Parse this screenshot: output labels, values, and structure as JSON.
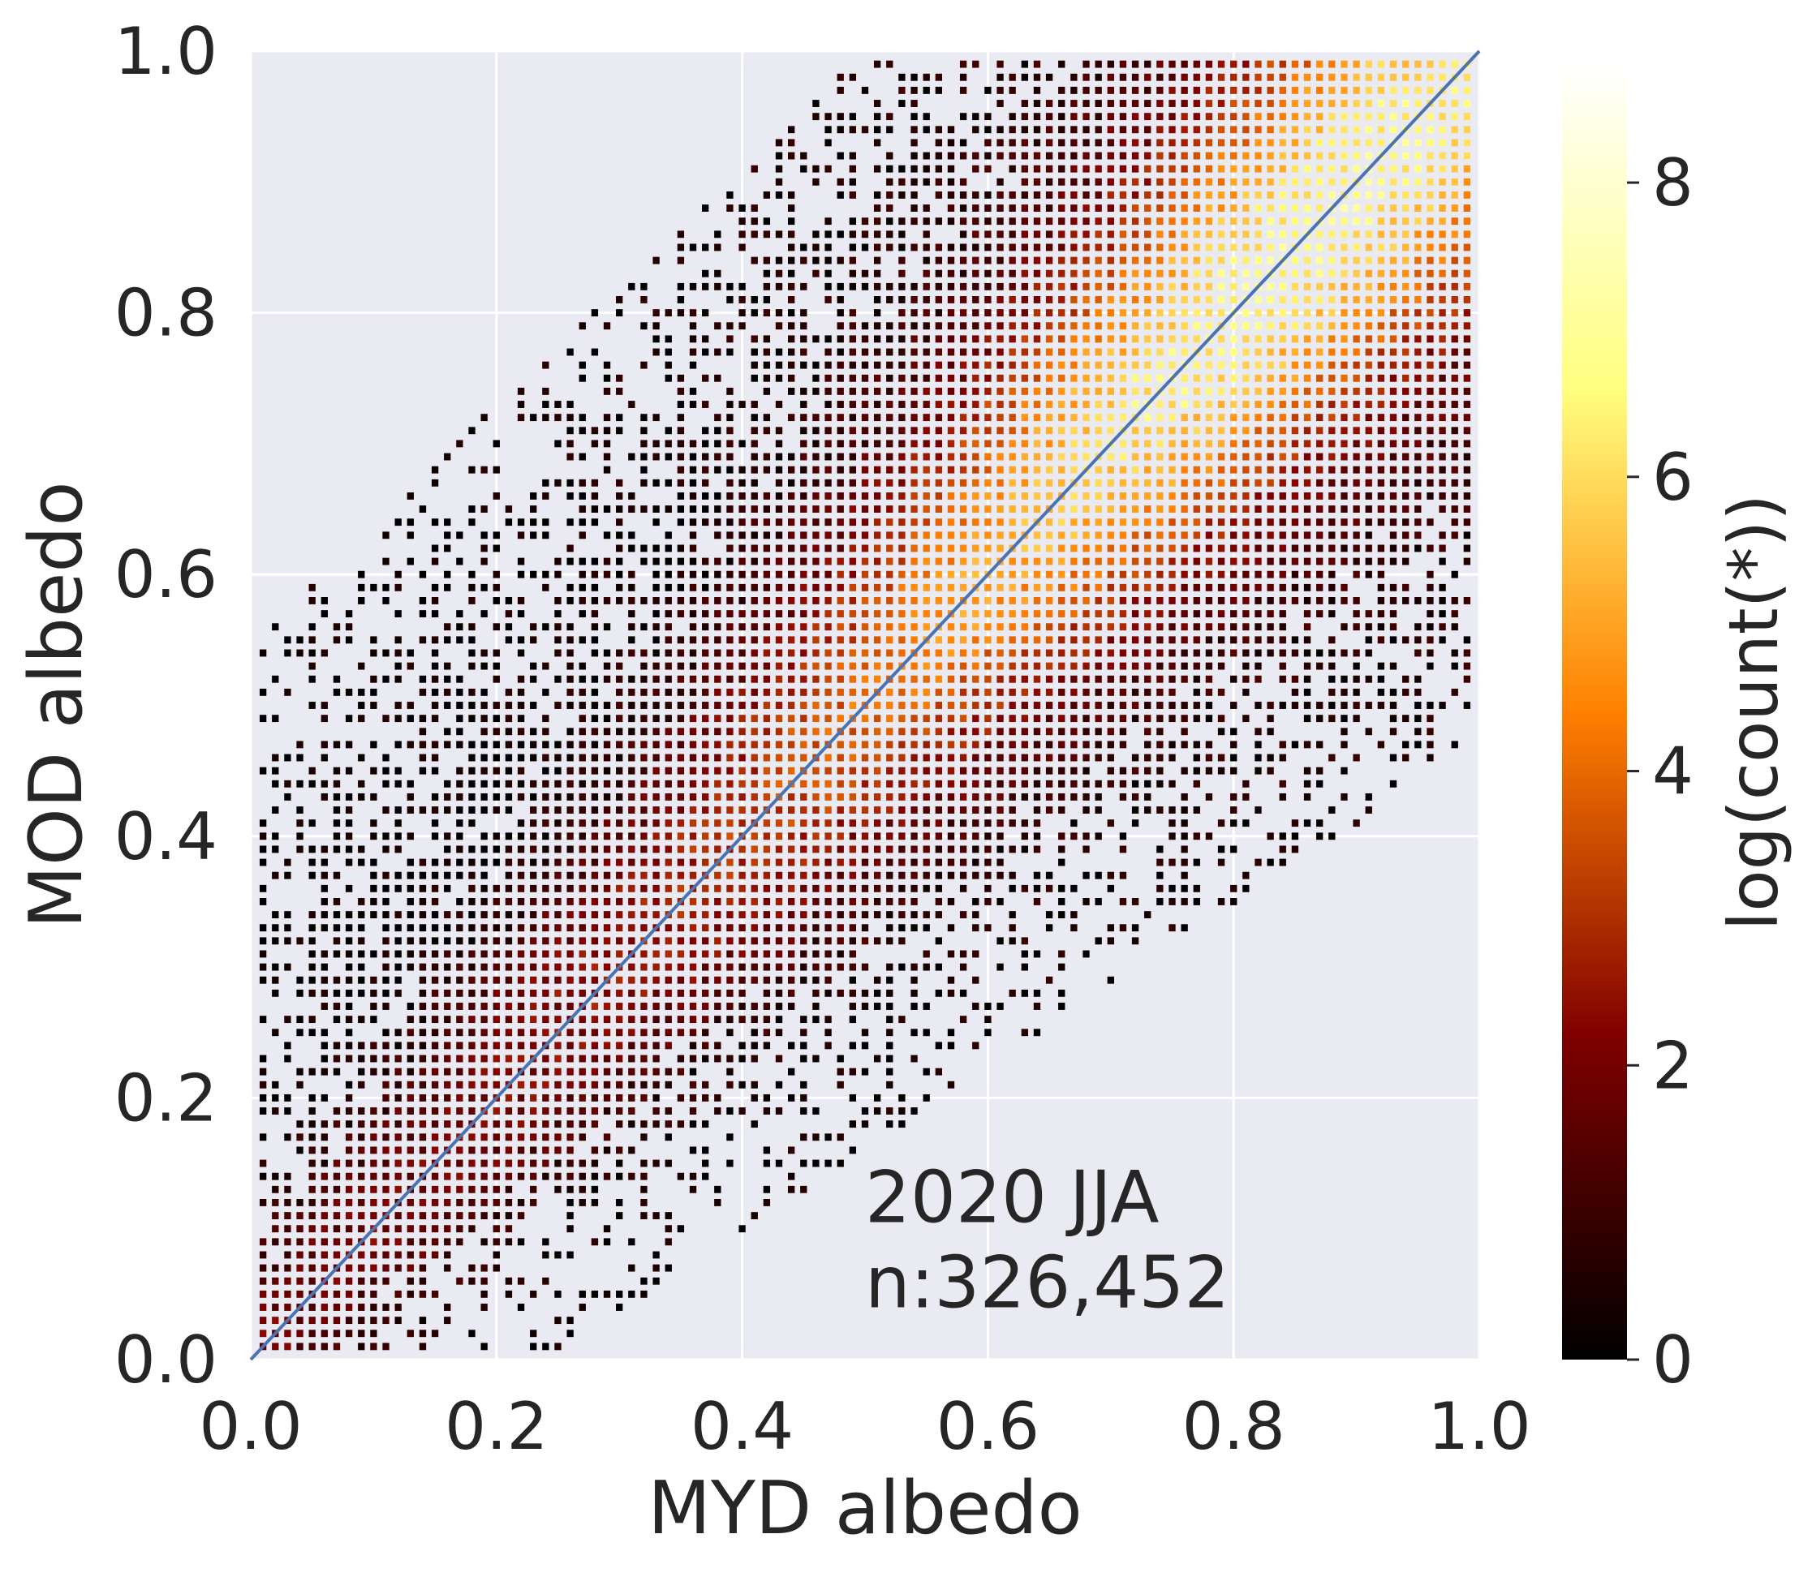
{
  "chart_data": {
    "type": "heatmap",
    "title": "",
    "xlabel": "MYD albedo",
    "ylabel": "MOD albedo",
    "xlim": [
      0.0,
      1.0
    ],
    "ylim": [
      0.0,
      1.0
    ],
    "x_ticks": [
      "0.0",
      "0.2",
      "0.4",
      "0.6",
      "0.8",
      "1.0"
    ],
    "y_ticks": [
      "0.0",
      "0.2",
      "0.4",
      "0.6",
      "0.8",
      "1.0"
    ],
    "grid": true,
    "background": "#eaeaf2",
    "bin_size": 0.01,
    "colormap": "afmhot",
    "annotation": {
      "line1": "2020 JJA",
      "line2": "n:326,452",
      "x": 0.5,
      "y": 0.04
    },
    "colorbar": {
      "label": "log(count(*))",
      "range": [
        0,
        8.8
      ],
      "ticks": [
        "0",
        "2",
        "4",
        "6",
        "8"
      ],
      "stops": [
        "#000000",
        "#800000",
        "#ff8000",
        "#ffff80",
        "#ffffff"
      ]
    },
    "reference_line": {
      "x": [
        0.0,
        1.0
      ],
      "y": [
        0.0,
        1.0
      ],
      "color": "#4c72b0"
    },
    "density_model": {
      "center": 0.87,
      "spread_along_diagonal": 0.42,
      "spread_across_diagonal": 0.1,
      "peak_log_count": 8.8
    }
  }
}
